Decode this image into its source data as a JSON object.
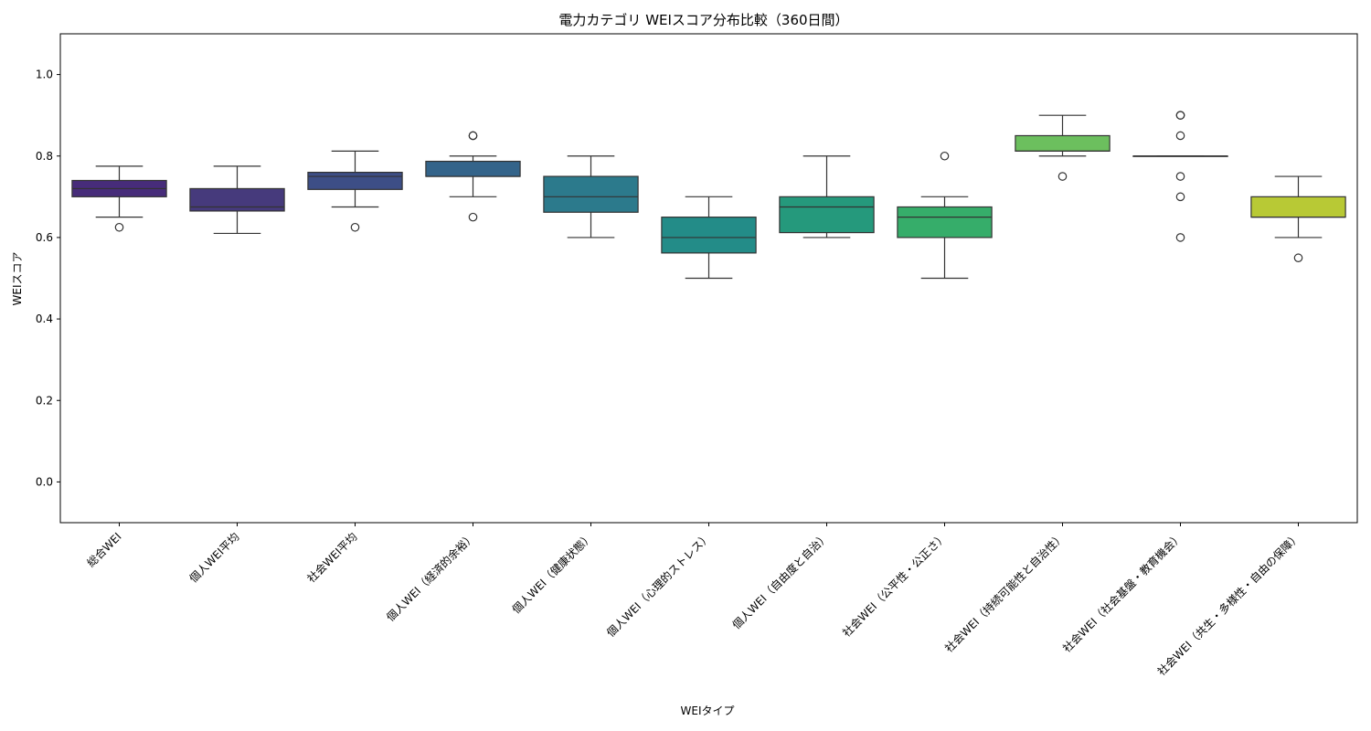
{
  "chart_data": {
    "type": "box",
    "title": "電力カテゴリ WEIスコア分布比較（360日間）",
    "xlabel": "WEIタイプ",
    "ylabel": "WEIスコア",
    "ylim": [
      -0.1,
      1.1
    ],
    "yticks": [
      "0.0",
      "0.2",
      "0.4",
      "0.6",
      "0.8",
      "1.0"
    ],
    "grid": false,
    "categories": [
      "総合WEI",
      "個人WEI平均",
      "社会WEI平均",
      "個人WEI（経済的余裕）",
      "個人WEI（健康状態）",
      "個人WEI（心理的ストレス）",
      "個人WEI（自由度と自治）",
      "社会WEI（公平性・公正さ）",
      "社会WEI（持続可能性と自治性）",
      "社会WEI（社会基盤・教育機会）",
      "社会WEI（共生・多様性・自由の保障）"
    ],
    "boxes": [
      {
        "whisker_low": 0.65,
        "q1": 0.7,
        "median": 0.72,
        "q3": 0.74,
        "whisker_high": 0.775,
        "outliers": [
          0.625
        ],
        "color": "#472c7a"
      },
      {
        "whisker_low": 0.61,
        "q1": 0.665,
        "median": 0.675,
        "q3": 0.72,
        "whisker_high": 0.775,
        "outliers": [],
        "color": "#463a7c"
      },
      {
        "whisker_low": 0.675,
        "q1": 0.718,
        "median": 0.75,
        "q3": 0.76,
        "whisker_high": 0.812,
        "outliers": [
          0.625
        ],
        "color": "#3d4e86"
      },
      {
        "whisker_low": 0.7,
        "q1": 0.75,
        "median": 0.75,
        "q3": 0.787,
        "whisker_high": 0.8,
        "outliers": [
          0.65,
          0.85,
          0.85
        ],
        "color": "#34648a"
      },
      {
        "whisker_low": 0.6,
        "q1": 0.662,
        "median": 0.7,
        "q3": 0.75,
        "whisker_high": 0.8,
        "outliers": [],
        "color": "#2c7a8c"
      },
      {
        "whisker_low": 0.5,
        "q1": 0.562,
        "median": 0.6,
        "q3": 0.65,
        "whisker_high": 0.7,
        "outliers": [],
        "color": "#238c88"
      },
      {
        "whisker_low": 0.6,
        "q1": 0.612,
        "median": 0.675,
        "q3": 0.7,
        "whisker_high": 0.8,
        "outliers": [],
        "color": "#25997c"
      },
      {
        "whisker_low": 0.5,
        "q1": 0.6,
        "median": 0.65,
        "q3": 0.675,
        "whisker_high": 0.7,
        "outliers": [
          0.8
        ],
        "color": "#36ad6a"
      },
      {
        "whisker_low": 0.8,
        "q1": 0.812,
        "median": 0.812,
        "q3": 0.85,
        "whisker_high": 0.9,
        "outliers": [
          0.75
        ],
        "color": "#6cbf5e"
      },
      {
        "whisker_low": 0.8,
        "q1": 0.8,
        "median": 0.8,
        "q3": 0.8,
        "whisker_high": 0.8,
        "outliers": [
          0.6,
          0.7,
          0.75,
          0.85,
          0.9,
          0.9
        ],
        "color": "#9fcf3c"
      },
      {
        "whisker_low": 0.6,
        "q1": 0.65,
        "median": 0.65,
        "q3": 0.7,
        "whisker_high": 0.75,
        "outliers": [
          0.55
        ],
        "color": "#b8c935"
      }
    ]
  }
}
